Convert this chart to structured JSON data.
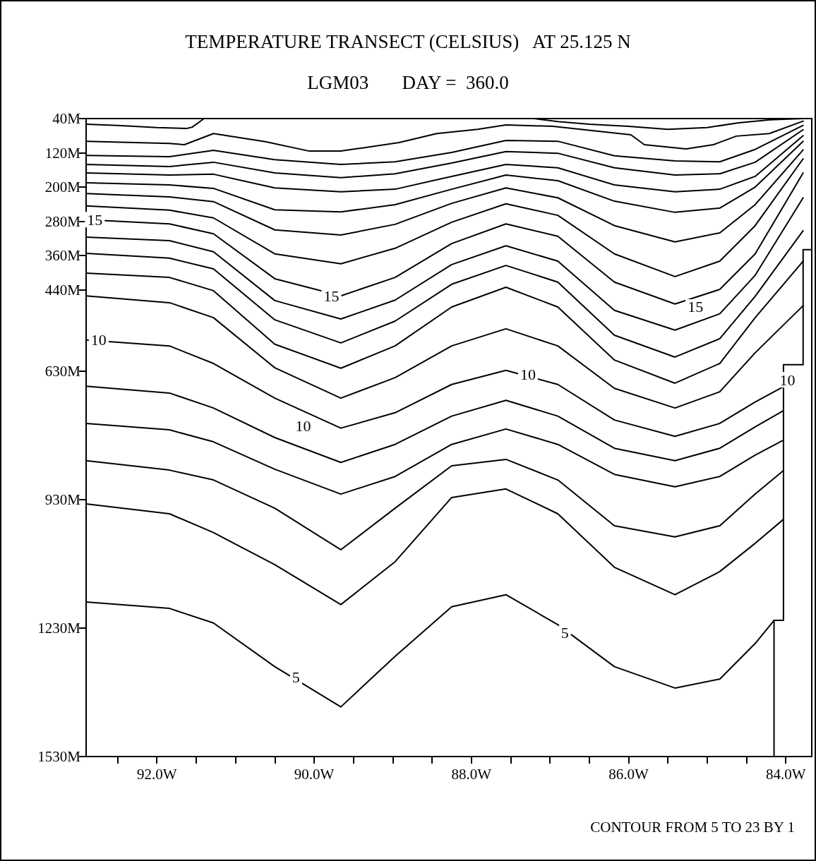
{
  "chart_data": {
    "type": "line",
    "title": "TEMPERATURE TRANSECT (CELSIUS)   AT 25.125 N",
    "subtitle": "LGM03       DAY =  360.0",
    "xlim": [
      92.9,
      83.67
    ],
    "xticks": [
      {
        "value": 92.5,
        "label": null
      },
      {
        "value": 92,
        "label": "92.0W"
      },
      {
        "value": 91.5,
        "label": null
      },
      {
        "value": 91,
        "label": null
      },
      {
        "value": 90.5,
        "label": null
      },
      {
        "value": 90,
        "label": "90.0W"
      },
      {
        "value": 89.5,
        "label": null
      },
      {
        "value": 89,
        "label": null
      },
      {
        "value": 88.5,
        "label": null
      },
      {
        "value": 88,
        "label": "88.0W"
      },
      {
        "value": 87.5,
        "label": null
      },
      {
        "value": 87,
        "label": null
      },
      {
        "value": 86.5,
        "label": null
      },
      {
        "value": 86,
        "label": "86.0W"
      },
      {
        "value": 85.5,
        "label": null
      },
      {
        "value": 85,
        "label": null
      },
      {
        "value": 84.5,
        "label": null
      },
      {
        "value": 84,
        "label": "84.0W"
      }
    ],
    "ylim": [
      1530,
      40
    ],
    "yticks": [
      {
        "value": 40,
        "label": "40M"
      },
      {
        "value": 120,
        "label": "120M"
      },
      {
        "value": 200,
        "label": "200M"
      },
      {
        "value": 280,
        "label": "280M"
      },
      {
        "value": 360,
        "label": "360M"
      },
      {
        "value": 440,
        "label": "440M"
      },
      {
        "value": 630,
        "label": "630M"
      },
      {
        "value": 930,
        "label": "930M"
      },
      {
        "value": 1230,
        "label": "1230M"
      },
      {
        "value": 1530,
        "label": "1530M"
      }
    ],
    "marker": "none",
    "line_style": "solid",
    "series": [
      {
        "color": "#000000",
        "x": [
          92.9,
          92.5,
          92.0,
          91.62,
          91.55,
          91.4,
          89.0,
          87.2,
          86.9,
          86.5,
          86.0,
          85.5,
          85.0,
          84.6,
          84.2,
          83.78
        ],
        "values": [
          53,
          56,
          61,
          63,
          60,
          40,
          null,
          40,
          47,
          53,
          58,
          65,
          61,
          50,
          43,
          40
        ]
      },
      {
        "color": "#000000",
        "x": [
          92.9,
          91.84,
          91.65,
          91.28,
          90.62,
          90.06,
          89.66,
          88.92,
          88.44,
          87.92,
          87.56,
          86.96,
          85.97,
          85.8,
          85.27,
          84.92,
          84.63,
          84.21,
          83.78
        ],
        "values": [
          93,
          98,
          101,
          75,
          94,
          116,
          116,
          96,
          75,
          65,
          55,
          58,
          78,
          101,
          111,
          101,
          81,
          75,
          46
        ]
      },
      {
        "color": "#000000",
        "x": [
          92.9,
          91.84,
          91.28,
          90.5,
          89.66,
          88.97,
          88.25,
          87.56,
          86.9,
          86.18,
          85.41,
          84.84,
          84.39,
          83.78
        ],
        "values": [
          126,
          129,
          114,
          136,
          147,
          141,
          119,
          91,
          93,
          127,
          139,
          141,
          112,
          56
        ]
      },
      {
        "color": "#000000",
        "x": [
          92.9,
          91.84,
          91.28,
          90.5,
          89.66,
          88.97,
          88.25,
          87.56,
          86.9,
          86.18,
          85.41,
          84.84,
          84.39,
          83.78
        ],
        "values": [
          147,
          152,
          142,
          167,
          178,
          169,
          144,
          117,
          121,
          155,
          172,
          169,
          142,
          66
        ]
      },
      {
        "color": "#000000",
        "x": [
          92.9,
          91.84,
          91.28,
          90.5,
          89.66,
          88.97,
          88.25,
          87.56,
          86.9,
          86.18,
          85.41,
          84.84,
          84.39,
          83.78
        ],
        "values": [
          167,
          172,
          170,
          202,
          211,
          205,
          175,
          147,
          155,
          195,
          211,
          205,
          175,
          80
        ]
      },
      {
        "color": "#000000",
        "x": [
          92.9,
          91.84,
          91.28,
          90.5,
          89.66,
          88.97,
          88.25,
          87.56,
          86.9,
          86.18,
          85.41,
          84.84,
          84.39,
          83.78
        ],
        "values": [
          190,
          195,
          203,
          253,
          258,
          241,
          205,
          172,
          185,
          233,
          259,
          249,
          200,
          93
        ]
      },
      {
        "color": "#000000",
        "x": [
          92.9,
          91.84,
          91.28,
          90.5,
          89.66,
          88.97,
          88.25,
          87.56,
          86.9,
          86.18,
          85.41,
          84.84,
          84.39,
          83.78
        ],
        "values": [
          215,
          223,
          234,
          300,
          312,
          287,
          238,
          202,
          225,
          290,
          328,
          307,
          241,
          113
        ]
      },
      {
        "color": "#000000",
        "x": [
          92.9,
          91.84,
          91.28,
          90.5,
          89.66,
          88.97,
          88.25,
          87.56,
          86.9,
          86.18,
          85.41,
          84.84,
          84.39,
          83.78
        ],
        "values": [
          244,
          254,
          272,
          356,
          379,
          343,
          282,
          239,
          266,
          356,
          409,
          373,
          290,
          134
        ]
      },
      {
        "color": "#000000",
        "x": [
          92.9,
          91.84,
          91.28,
          90.5,
          89.66,
          88.97,
          88.25,
          87.56,
          86.9,
          86.18,
          85.41,
          84.84,
          84.39,
          83.78
        ],
        "values": [
          276,
          286,
          309,
          414,
          454,
          411,
          332,
          286,
          315,
          422,
          473,
          439,
          356,
          167
        ]
      },
      {
        "color": "#000000",
        "x": [
          92.9,
          91.84,
          91.28,
          90.5,
          89.66,
          88.97,
          88.25,
          87.56,
          86.9,
          86.18,
          85.41,
          84.84,
          84.39,
          83.78
        ],
        "values": [
          317,
          325,
          351,
          465,
          508,
          464,
          381,
          337,
          373,
          488,
          534,
          496,
          406,
          225
        ]
      },
      {
        "color": "#000000",
        "x": [
          92.9,
          91.84,
          91.28,
          90.5,
          89.66,
          88.97,
          88.25,
          87.56,
          86.9,
          86.18,
          85.41,
          84.84,
          84.39,
          83.78
        ],
        "values": [
          355,
          366,
          391,
          510,
          564,
          513,
          427,
          383,
          422,
          546,
          597,
          554,
          455,
          302
        ]
      },
      {
        "color": "#000000",
        "x": [
          92.9,
          91.84,
          91.28,
          90.5,
          89.66,
          88.97,
          88.25,
          87.56,
          86.9,
          86.18,
          85.41,
          84.84,
          84.39,
          83.78
        ],
        "values": [
          401,
          411,
          442,
          567,
          623,
          571,
          480,
          434,
          480,
          604,
          658,
          612,
          505,
          373
        ]
      },
      {
        "color": "#000000",
        "x": [
          92.9,
          91.84,
          91.28,
          90.5,
          89.66,
          88.97,
          88.25,
          87.56,
          86.9,
          86.18,
          85.41,
          84.84,
          84.39,
          83.78
        ],
        "values": [
          454,
          470,
          505,
          622,
          693,
          645,
          571,
          531,
          571,
          670,
          716,
          678,
          587,
          477
        ]
      },
      {
        "color": "#000000",
        "x": [
          92.9,
          91.84,
          91.28,
          90.5,
          89.66,
          88.97,
          88.25,
          87.56,
          86.9,
          86.18,
          85.41,
          84.84,
          84.39,
          84.03
        ],
        "values": [
          557,
          571,
          612,
          693,
          763,
          727,
          661,
          628,
          661,
          744,
          782,
          752,
          702,
          666
        ]
      },
      {
        "color": "#000000",
        "x": [
          92.9,
          91.84,
          91.28,
          90.5,
          89.66,
          88.97,
          88.25,
          87.56,
          86.9,
          86.18,
          85.41,
          84.84,
          84.39,
          84.03
        ],
        "values": [
          665,
          681,
          716,
          785,
          843,
          801,
          735,
          698,
          735,
          810,
          839,
          810,
          760,
          722
        ]
      },
      {
        "color": "#000000",
        "x": [
          92.9,
          91.84,
          91.28,
          90.5,
          89.66,
          88.97,
          88.25,
          87.56,
          86.9,
          86.18,
          85.41,
          84.84,
          84.39,
          84.03
        ],
        "values": [
          752,
          767,
          795,
          859,
          917,
          876,
          801,
          765,
          801,
          871,
          900,
          876,
          826,
          791
        ]
      },
      {
        "color": "#000000",
        "x": [
          92.9,
          91.84,
          91.28,
          90.5,
          89.66,
          88.97,
          88.25,
          87.56,
          86.9,
          86.18,
          85.41,
          84.84,
          84.39,
          84.03
        ],
        "values": [
          839,
          861,
          884,
          950,
          1047,
          950,
          851,
          836,
          884,
          991,
          1017,
          991,
          917,
          862
        ]
      },
      {
        "color": "#000000",
        "x": [
          92.9,
          91.84,
          91.28,
          90.5,
          89.66,
          88.97,
          88.25,
          87.56,
          86.9,
          86.18,
          85.41,
          84.84,
          84.39,
          84.03
        ],
        "values": [
          940,
          963,
          1007,
          1082,
          1175,
          1075,
          925,
          905,
          963,
          1088,
          1152,
          1098,
          1032,
          976
        ]
      },
      {
        "color": "#000000",
        "x": [
          92.9,
          91.84,
          91.28,
          90.5,
          89.66,
          88.97,
          88.25,
          87.56,
          86.9,
          86.18,
          85.41,
          84.84,
          84.39,
          84.15
        ],
        "values": [
          1169,
          1184,
          1218,
          1320,
          1414,
          1296,
          1180,
          1152,
          1222,
          1320,
          1370,
          1349,
          1266,
          1212
        ]
      },
      {
        "color": "#000000",
        "x": [
          83.68,
          83.78,
          83.78,
          84.03,
          84.03,
          84.15,
          84.15
        ],
        "values": [
          346,
          346,
          615,
          615,
          1212,
          1212,
          1530
        ]
      }
    ],
    "annotations": [
      {
        "text": "15",
        "x": 92.79,
        "y": 276
      },
      {
        "text": "15",
        "x": 89.78,
        "y": 455
      },
      {
        "text": "15",
        "x": 85.15,
        "y": 480
      },
      {
        "text": "10",
        "x": 92.74,
        "y": 557
      },
      {
        "text": "10",
        "x": 90.14,
        "y": 757
      },
      {
        "text": "10",
        "x": 87.28,
        "y": 637
      },
      {
        "text": "10",
        "x": 83.98,
        "y": 650
      },
      {
        "text": "5",
        "x": 90.23,
        "y": 1345
      },
      {
        "text": "5",
        "x": 86.81,
        "y": 1241
      },
      "CONTOUR FROM 5 TO 23 BY 1"
    ]
  }
}
